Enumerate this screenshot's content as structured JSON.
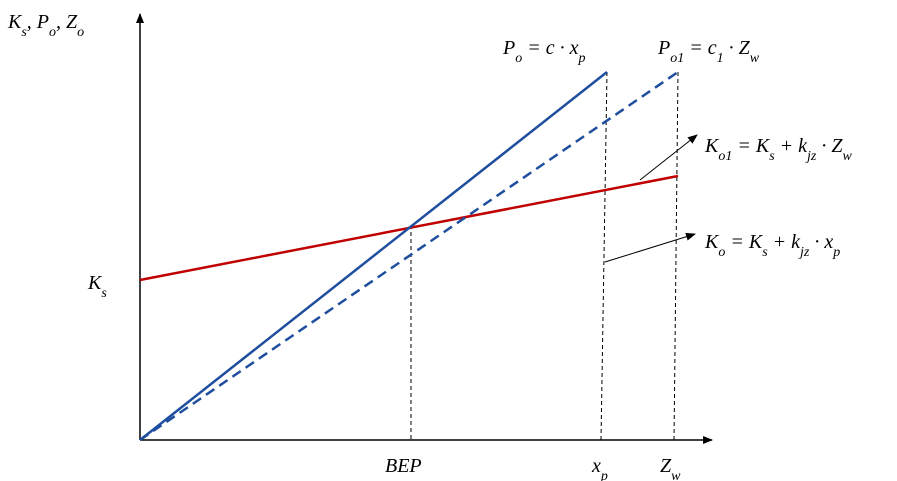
{
  "labels": {
    "y_axis": [
      "K",
      "s",
      ", P",
      "o",
      ", Z",
      "o"
    ],
    "ks": [
      "K",
      "s"
    ],
    "po": [
      "P",
      "o",
      " = c · x",
      "p"
    ],
    "po1": [
      "P",
      "o1",
      " = c",
      "1",
      " · Z",
      "w"
    ],
    "ko1": [
      "K",
      "o1",
      " = K",
      "s",
      " + k",
      "jz",
      " · Z",
      "w"
    ],
    "ko": [
      "K",
      "o",
      " = K",
      "s",
      " + k",
      "jz",
      " · x",
      "p"
    ],
    "bep": [
      "BEP"
    ],
    "xp": [
      "x",
      "p"
    ],
    "zw": [
      "Z",
      "w"
    ]
  }
}
